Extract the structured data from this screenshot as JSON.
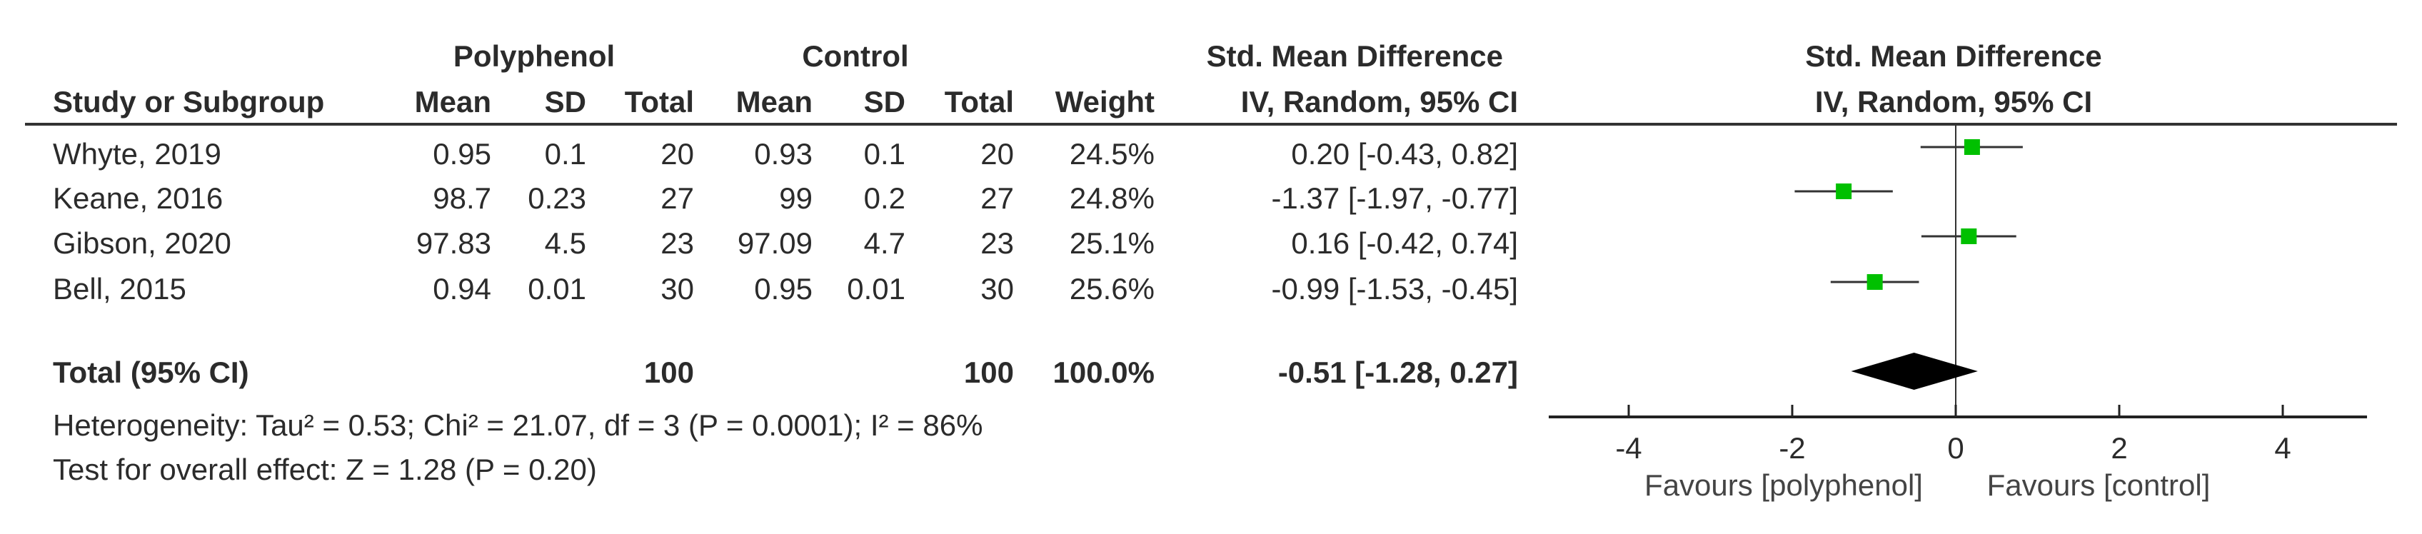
{
  "header": {
    "group1": "Polyphenol",
    "group2": "Control",
    "effect_title": "Std. Mean Difference",
    "effect_method": "IV, Random, 95% CI",
    "plot_title": "Std. Mean Difference",
    "plot_method": "IV, Random, 95% CI",
    "columns": [
      "Study or Subgroup",
      "Mean",
      "SD",
      "Total",
      "Mean",
      "SD",
      "Total",
      "Weight"
    ]
  },
  "studies": [
    {
      "name": "Whyte, 2019",
      "p_mean": "0.95",
      "p_sd": "0.1",
      "p_total": "20",
      "c_mean": "0.93",
      "c_sd": "0.1",
      "c_total": "20",
      "weight": "24.5%",
      "ci_text": "0.20 [-0.43, 0.82]"
    },
    {
      "name": "Keane, 2016",
      "p_mean": "98.7",
      "p_sd": "0.23",
      "p_total": "27",
      "c_mean": "99",
      "c_sd": "0.2",
      "c_total": "27",
      "weight": "24.8%",
      "ci_text": "-1.37 [-1.97, -0.77]"
    },
    {
      "name": "Gibson, 2020",
      "p_mean": "97.83",
      "p_sd": "4.5",
      "p_total": "23",
      "c_mean": "97.09",
      "c_sd": "4.7",
      "c_total": "23",
      "weight": "25.1%",
      "ci_text": "0.16 [-0.42, 0.74]"
    },
    {
      "name": "Bell, 2015",
      "p_mean": "0.94",
      "p_sd": "0.01",
      "p_total": "30",
      "c_mean": "0.95",
      "c_sd": "0.01",
      "c_total": "30",
      "weight": "25.6%",
      "ci_text": "-0.99 [-1.53, -0.45]"
    }
  ],
  "total": {
    "label": "Total (95% CI)",
    "p_total": "100",
    "c_total": "100",
    "weight": "100.0%",
    "ci_text": "-0.51 [-1.28, 0.27]"
  },
  "heterogeneity": "Heterogeneity: Tau² = 0.53; Chi² = 21.07, df = 3 (P = 0.0001); I² = 86%",
  "overall_effect": "Test for overall effect: Z = 1.28 (P = 0.20)",
  "chart_data": {
    "type": "forest",
    "studies": [
      {
        "name": "Whyte, 2019",
        "estimate": 0.2,
        "lower": -0.43,
        "upper": 0.82,
        "weight": 24.5
      },
      {
        "name": "Keane, 2016",
        "estimate": -1.37,
        "lower": -1.97,
        "upper": -0.77,
        "weight": 24.8
      },
      {
        "name": "Gibson, 2020",
        "estimate": 0.16,
        "lower": -0.42,
        "upper": 0.74,
        "weight": 25.1
      },
      {
        "name": "Bell, 2015",
        "estimate": -0.99,
        "lower": -1.53,
        "upper": -0.45,
        "weight": 25.6
      }
    ],
    "pooled": {
      "estimate": -0.51,
      "lower": -1.28,
      "upper": 0.27
    },
    "xlim": [
      -5,
      5
    ],
    "xticks": [
      "-4",
      "-2",
      "0",
      "2",
      "4"
    ],
    "xtick_values": [
      -4,
      -2,
      0,
      2,
      4
    ],
    "left_label": "Favours [polyphenol]",
    "right_label": "Favours [control]",
    "marker_color": "#00c000",
    "diamond_color": "#000000"
  }
}
